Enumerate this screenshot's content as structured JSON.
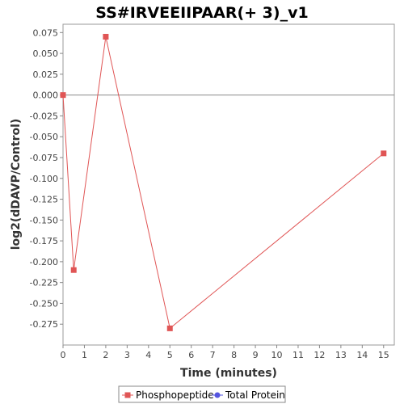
{
  "chart_data": {
    "type": "line",
    "title": "SS#IRVEEIIPAAR(+ 3)_v1",
    "xlabel": "Time (minutes)",
    "ylabel": "log2(dDAVP/Control)",
    "xlim": [
      0,
      15.5
    ],
    "ylim": [
      -0.3,
      0.085
    ],
    "x_ticks": [
      "0",
      "1",
      "2",
      "3",
      "4",
      "5",
      "6",
      "7",
      "8",
      "9",
      "10",
      "11",
      "12",
      "13",
      "14",
      "15"
    ],
    "y_ticks": [
      "0.075",
      "0.050",
      "0.025",
      "0.000",
      "-0.025",
      "-0.050",
      "-0.075",
      "-0.100",
      "-0.125",
      "-0.150",
      "-0.175",
      "-0.200",
      "-0.225",
      "-0.250",
      "-0.275"
    ],
    "grid": false,
    "zero_line": true,
    "legend_position": "bottom",
    "series": [
      {
        "name": "Phosphopeptide",
        "color": "#e05555",
        "marker": "square",
        "x": [
          0,
          0.5,
          2,
          5,
          15
        ],
        "y": [
          0.0,
          -0.21,
          0.07,
          -0.28,
          -0.07
        ]
      },
      {
        "name": "Total Protein",
        "color": "#5555e0",
        "marker": "circle",
        "x": [],
        "y": []
      }
    ]
  }
}
